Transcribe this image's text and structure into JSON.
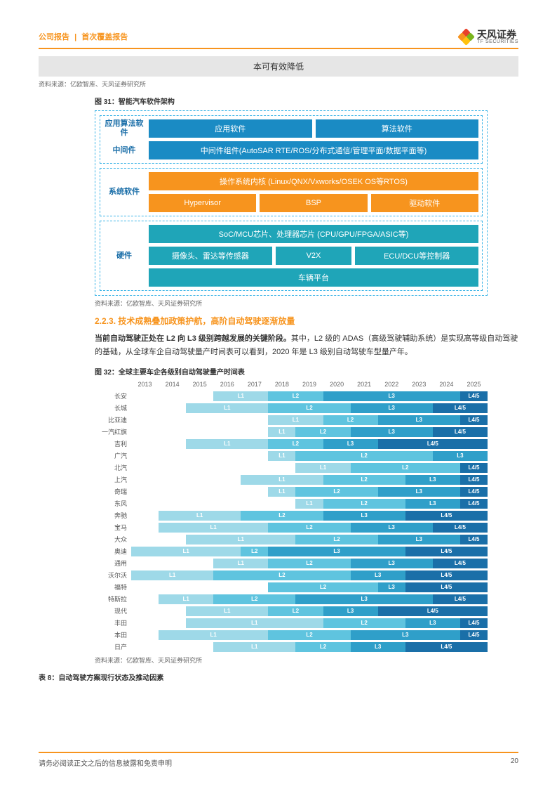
{
  "header": {
    "category": "公司报告",
    "subtype": "首次覆盖报告",
    "logo_cn": "天风证券",
    "logo_en": "TF SECURITIES"
  },
  "grey_box_text": "本可有效降低",
  "source_text": "资料来源：亿欧智库、天风证券研究所",
  "figure31": {
    "title": "图 31：智能汽车软件架构",
    "groups": [
      {
        "rows": [
          {
            "label": "应用算法软件",
            "cells": [
              {
                "text": "应用软件",
                "color": "blue",
                "flex": 1
              },
              {
                "text": "算法软件",
                "color": "blue",
                "flex": 1
              }
            ]
          },
          {
            "label": "中间件",
            "cells": [
              {
                "text": "中间件组件(AutoSAR RTE/ROS/分布式通信/管理平面/数据平面等)",
                "color": "blue",
                "flex": 1
              }
            ]
          }
        ]
      },
      {
        "rows": [
          {
            "label": "系统软件",
            "cells_rows": [
              [
                {
                  "text": "操作系统内核 (Linux/QNX/Vxworks/OSEK OS等RTOS)",
                  "color": "orange",
                  "flex": 1
                }
              ],
              [
                {
                  "text": "Hypervisor",
                  "color": "orange",
                  "flex": 1
                },
                {
                  "text": "BSP",
                  "color": "orange",
                  "flex": 1
                },
                {
                  "text": "驱动软件",
                  "color": "orange",
                  "flex": 1
                }
              ]
            ]
          }
        ]
      },
      {
        "rows": [
          {
            "label": "硬件",
            "cells_rows": [
              [
                {
                  "text": "SoC/MCU芯片、处理器芯片 (CPU/GPU/FPGA/ASIC等)",
                  "color": "teal",
                  "flex": 1
                }
              ],
              [
                {
                  "text": "摄像头、雷达等传感器",
                  "color": "teal",
                  "flex": 1
                },
                {
                  "text": "V2X",
                  "color": "teal",
                  "flex": 0.6
                },
                {
                  "text": "ECU/DCU等控制器",
                  "color": "teal",
                  "flex": 1
                }
              ],
              [
                {
                  "text": "车辆平台",
                  "color": "teal",
                  "flex": 1
                }
              ]
            ]
          }
        ]
      }
    ]
  },
  "section_223": {
    "number": "2.2.3.",
    "title": "技术成熟叠加政策护航，高阶自动驾驶逐渐放量"
  },
  "paragraph": {
    "bold": "当前自动驾驶正处在 L2 向 L3 级别跨越发展的关键阶段。",
    "rest": "其中，L2 级的 ADAS（高级驾驶辅助系统）是实现高等级自动驾驶的基础，从全球车企自动驾驶量产时间表可以看到，2020 年是 L3 级别自动驾驶车型量产年。"
  },
  "figure32": {
    "title": "图 32：全球主要车企各级别自动驾驶量产时间表",
    "years": [
      "2013",
      "2014",
      "2015",
      "2016",
      "2017",
      "2018",
      "2019",
      "2020",
      "2021",
      "2022",
      "2023",
      "2024",
      "2025"
    ],
    "year_start": 2013,
    "year_span": 13,
    "colors": {
      "L1": "#9ed9e8",
      "L2": "#5fc4df",
      "L3": "#2f9fc9",
      "L4/5": "#1a6fa8"
    },
    "rows": [
      {
        "label": "长安",
        "segs": [
          {
            "lv": "L1",
            "s": 2016,
            "e": 2018
          },
          {
            "lv": "L2",
            "s": 2018,
            "e": 2020
          },
          {
            "lv": "L3",
            "s": 2020,
            "e": 2025
          },
          {
            "lv": "L4/5",
            "s": 2025,
            "e": 2026
          }
        ]
      },
      {
        "label": "长城",
        "segs": [
          {
            "lv": "L1",
            "s": 2015,
            "e": 2018
          },
          {
            "lv": "L2",
            "s": 2018,
            "e": 2021
          },
          {
            "lv": "L3",
            "s": 2021,
            "e": 2024
          },
          {
            "lv": "L4/5",
            "s": 2024,
            "e": 2026
          }
        ]
      },
      {
        "label": "比亚迪",
        "segs": [
          {
            "lv": "L1",
            "s": 2018,
            "e": 2020
          },
          {
            "lv": "L2",
            "s": 2020,
            "e": 2022
          },
          {
            "lv": "L3",
            "s": 2022,
            "e": 2025
          },
          {
            "lv": "L4/5",
            "s": 2025,
            "e": 2026
          }
        ]
      },
      {
        "label": "一汽红旗",
        "segs": [
          {
            "lv": "L1",
            "s": 2018,
            "e": 2019
          },
          {
            "lv": "L2",
            "s": 2019,
            "e": 2021
          },
          {
            "lv": "L3",
            "s": 2021,
            "e": 2024
          },
          {
            "lv": "L4/5",
            "s": 2024,
            "e": 2026
          }
        ]
      },
      {
        "label": "吉利",
        "segs": [
          {
            "lv": "L1",
            "s": 2015,
            "e": 2018
          },
          {
            "lv": "L2",
            "s": 2018,
            "e": 2020
          },
          {
            "lv": "L3",
            "s": 2020,
            "e": 2022
          },
          {
            "lv": "L4/5",
            "s": 2022,
            "e": 2026
          }
        ]
      },
      {
        "label": "广汽",
        "segs": [
          {
            "lv": "L1",
            "s": 2018,
            "e": 2019
          },
          {
            "lv": "L2",
            "s": 2019,
            "e": 2024
          },
          {
            "lv": "L3",
            "s": 2024,
            "e": 2026
          }
        ]
      },
      {
        "label": "北汽",
        "segs": [
          {
            "lv": "L1",
            "s": 2019,
            "e": 2021
          },
          {
            "lv": "L2",
            "s": 2021,
            "e": 2025
          },
          {
            "lv": "L4/5",
            "s": 2025,
            "e": 2026
          }
        ]
      },
      {
        "label": "上汽",
        "segs": [
          {
            "lv": "L1",
            "s": 2017,
            "e": 2020
          },
          {
            "lv": "L2",
            "s": 2020,
            "e": 2023
          },
          {
            "lv": "L3",
            "s": 2023,
            "e": 2025
          },
          {
            "lv": "L4/5",
            "s": 2025,
            "e": 2026
          }
        ]
      },
      {
        "label": "奇瑞",
        "segs": [
          {
            "lv": "L1",
            "s": 2018,
            "e": 2019
          },
          {
            "lv": "L2",
            "s": 2019,
            "e": 2022
          },
          {
            "lv": "L3",
            "s": 2022,
            "e": 2025
          },
          {
            "lv": "L4/5",
            "s": 2025,
            "e": 2026
          }
        ]
      },
      {
        "label": "东风",
        "segs": [
          {
            "lv": "L1",
            "s": 2019,
            "e": 2020
          },
          {
            "lv": "L2",
            "s": 2020,
            "e": 2023
          },
          {
            "lv": "L3",
            "s": 2023,
            "e": 2025
          },
          {
            "lv": "L4/5",
            "s": 2025,
            "e": 2026
          }
        ]
      },
      {
        "label": "奔驰",
        "segs": [
          {
            "lv": "L1",
            "s": 2014,
            "e": 2017
          },
          {
            "lv": "L2",
            "s": 2017,
            "e": 2020
          },
          {
            "lv": "L3",
            "s": 2020,
            "e": 2023
          },
          {
            "lv": "L4/5",
            "s": 2023,
            "e": 2026
          }
        ]
      },
      {
        "label": "宝马",
        "segs": [
          {
            "lv": "L1",
            "s": 2014,
            "e": 2018
          },
          {
            "lv": "L2",
            "s": 2018,
            "e": 2021
          },
          {
            "lv": "L3",
            "s": 2021,
            "e": 2024
          },
          {
            "lv": "L4/5",
            "s": 2024,
            "e": 2026
          }
        ]
      },
      {
        "label": "大众",
        "segs": [
          {
            "lv": "L1",
            "s": 2015,
            "e": 2019
          },
          {
            "lv": "L2",
            "s": 2019,
            "e": 2022
          },
          {
            "lv": "L3",
            "s": 2022,
            "e": 2025
          },
          {
            "lv": "L4/5",
            "s": 2025,
            "e": 2026
          }
        ]
      },
      {
        "label": "奥迪",
        "segs": [
          {
            "lv": "L1",
            "s": 2013,
            "e": 2017
          },
          {
            "lv": "L2",
            "s": 2017,
            "e": 2018
          },
          {
            "lv": "L3",
            "s": 2018,
            "e": 2023
          },
          {
            "lv": "L4/5",
            "s": 2023,
            "e": 2026
          }
        ]
      },
      {
        "label": "通用",
        "segs": [
          {
            "lv": "L1",
            "s": 2016,
            "e": 2018
          },
          {
            "lv": "L2",
            "s": 2018,
            "e": 2021
          },
          {
            "lv": "L3",
            "s": 2021,
            "e": 2024
          },
          {
            "lv": "L4/5",
            "s": 2024,
            "e": 2026
          }
        ]
      },
      {
        "label": "沃尔沃",
        "segs": [
          {
            "lv": "L1",
            "s": 2013,
            "e": 2016
          },
          {
            "lv": "L2",
            "s": 2016,
            "e": 2021
          },
          {
            "lv": "L3",
            "s": 2021,
            "e": 2023
          },
          {
            "lv": "L4/5",
            "s": 2023,
            "e": 2026
          }
        ]
      },
      {
        "label": "福特",
        "segs": [
          {
            "lv": "L2",
            "s": 2018,
            "e": 2022
          },
          {
            "lv": "L3",
            "s": 2022,
            "e": 2023
          },
          {
            "lv": "L4/5",
            "s": 2023,
            "e": 2026
          }
        ]
      },
      {
        "label": "特斯拉",
        "segs": [
          {
            "lv": "L1",
            "s": 2014,
            "e": 2016
          },
          {
            "lv": "L2",
            "s": 2016,
            "e": 2019
          },
          {
            "lv": "L3",
            "s": 2019,
            "e": 2024
          },
          {
            "lv": "L4/5",
            "s": 2024,
            "e": 2026
          }
        ]
      },
      {
        "label": "现代",
        "segs": [
          {
            "lv": "L1",
            "s": 2015,
            "e": 2018
          },
          {
            "lv": "L2",
            "s": 2018,
            "e": 2020
          },
          {
            "lv": "L3",
            "s": 2020,
            "e": 2022
          },
          {
            "lv": "L4/5",
            "s": 2022,
            "e": 2026
          }
        ]
      },
      {
        "label": "丰田",
        "segs": [
          {
            "lv": "L1",
            "s": 2015,
            "e": 2020
          },
          {
            "lv": "L2",
            "s": 2020,
            "e": 2023
          },
          {
            "lv": "L3",
            "s": 2023,
            "e": 2025
          },
          {
            "lv": "L4/5",
            "s": 2025,
            "e": 2026
          }
        ]
      },
      {
        "label": "本田",
        "segs": [
          {
            "lv": "L1",
            "s": 2014,
            "e": 2018
          },
          {
            "lv": "L2",
            "s": 2018,
            "e": 2021
          },
          {
            "lv": "L3",
            "s": 2021,
            "e": 2025
          },
          {
            "lv": "L4/5",
            "s": 2025,
            "e": 2026
          }
        ]
      },
      {
        "label": "日产",
        "segs": [
          {
            "lv": "L1",
            "s": 2016,
            "e": 2019
          },
          {
            "lv": "L2",
            "s": 2019,
            "e": 2021
          },
          {
            "lv": "L3",
            "s": 2021,
            "e": 2023
          },
          {
            "lv": "L4/5",
            "s": 2023,
            "e": 2026
          }
        ]
      }
    ]
  },
  "table8_title": "表 8：自动驾驶方案现行状态及推动因素",
  "footer": {
    "disclaimer": "请务必阅读正文之后的信息披露和免责申明",
    "page": "20"
  }
}
